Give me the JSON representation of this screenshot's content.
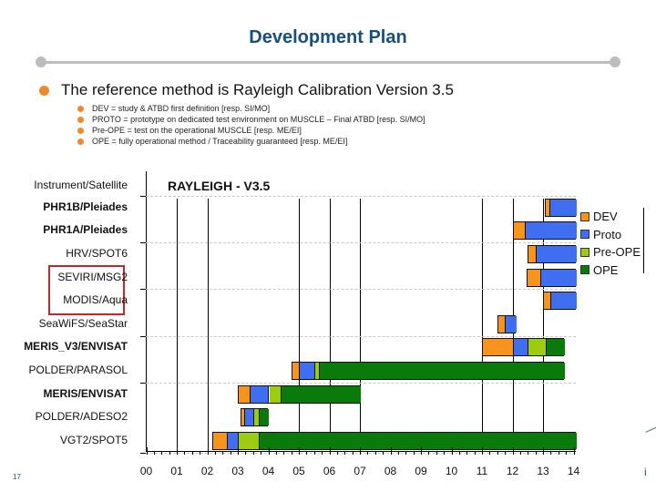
{
  "header": {
    "title": "Development Plan"
  },
  "bullets": {
    "main": "The reference method is Rayleigh Calibration Version 3.5",
    "sub": [
      "DEV = study & ATBD first definition [resp. SI/MO]",
      "PROTO = prototype on dedicated test environment on MUSCLE – Final ATBD [resp. SI/MO]",
      "Pre-OPE = test on the operational MUSCLE [resp. ME/EI]",
      "OPE = fully operational method / Traceability guaranteed [resp. ME/EI]"
    ]
  },
  "colors": {
    "DEV": "#f7941d",
    "Proto": "#3f6ef0",
    "Pre-OPE": "#9ccc10",
    "OPE": "#0a7a0a",
    "title": "#17507c",
    "bullet": "#ee8a2b",
    "highlight": "#c0282e"
  },
  "footer": {
    "page_number": "17",
    "right_glyph": "i"
  },
  "chart_data": {
    "type": "gantt",
    "title": "RAYLEIGH - V3.5",
    "ylabel": "Instrument/Satellite",
    "xlabel": "",
    "x_ticks": [
      "00",
      "01",
      "02",
      "03",
      "04",
      "05",
      "06",
      "07",
      "08",
      "09",
      "10",
      "11",
      "12",
      "13",
      "14"
    ],
    "xlim": [
      2000,
      2014.1
    ],
    "grid_vertical_years": [
      "00",
      "01",
      "02",
      "05",
      "06",
      "07",
      "11",
      "12",
      "13"
    ],
    "legend": [
      "DEV",
      "Proto",
      "Pre-OPE",
      "OPE"
    ],
    "legend_position": "right",
    "highlighted_rows": [
      "SEVIRI/MSG2",
      "MODIS/Aqua"
    ],
    "rows": [
      {
        "label": "PHR1B/Pleiades",
        "bold": true,
        "segments": [
          {
            "phase": "DEV",
            "start": 13.05,
            "end": 13.2
          },
          {
            "phase": "Proto",
            "start": 13.2,
            "end": 14.1
          }
        ]
      },
      {
        "label": "PHR1A/Pleiades",
        "bold": true,
        "segments": [
          {
            "phase": "DEV",
            "start": 12.0,
            "end": 12.4
          },
          {
            "phase": "Proto",
            "start": 12.4,
            "end": 14.1
          }
        ]
      },
      {
        "label": "HRV/SPOT6",
        "bold": false,
        "segments": [
          {
            "phase": "DEV",
            "start": 12.5,
            "end": 12.75
          },
          {
            "phase": "Proto",
            "start": 12.75,
            "end": 14.1
          }
        ]
      },
      {
        "label": "SEVIRI/MSG2",
        "bold": false,
        "segments": [
          {
            "phase": "DEV",
            "start": 12.45,
            "end": 12.9
          },
          {
            "phase": "Proto",
            "start": 12.9,
            "end": 14.1
          }
        ]
      },
      {
        "label": "MODIS/Aqua",
        "bold": false,
        "segments": [
          {
            "phase": "DEV",
            "start": 13.0,
            "end": 13.25
          },
          {
            "phase": "Proto",
            "start": 13.25,
            "end": 14.1
          }
        ]
      },
      {
        "label": "SeaWiFS/SeaStar",
        "bold": false,
        "segments": [
          {
            "phase": "DEV",
            "start": 11.5,
            "end": 11.75
          },
          {
            "phase": "Proto",
            "start": 11.75,
            "end": 12.1
          }
        ]
      },
      {
        "label": "MERIS_V3/ENVISAT",
        "bold": true,
        "segments": [
          {
            "phase": "DEV",
            "start": 11.0,
            "end": 12.0
          },
          {
            "phase": "Proto",
            "start": 12.0,
            "end": 12.5
          },
          {
            "phase": "Pre-OPE",
            "start": 12.5,
            "end": 13.1
          },
          {
            "phase": "OPE",
            "start": 13.1,
            "end": 13.7
          }
        ]
      },
      {
        "label": "POLDER/PARASOL",
        "bold": false,
        "segments": [
          {
            "phase": "DEV",
            "start": 4.75,
            "end": 5.0
          },
          {
            "phase": "Proto",
            "start": 5.0,
            "end": 5.5
          },
          {
            "phase": "Pre-OPE",
            "start": 5.5,
            "end": 5.65
          },
          {
            "phase": "OPE",
            "start": 5.65,
            "end": 13.7
          }
        ]
      },
      {
        "label": "MERIS/ENVISAT",
        "bold": true,
        "segments": [
          {
            "phase": "DEV",
            "start": 3.0,
            "end": 3.4
          },
          {
            "phase": "Proto",
            "start": 3.4,
            "end": 4.0
          },
          {
            "phase": "Pre-OPE",
            "start": 4.0,
            "end": 4.4
          },
          {
            "phase": "OPE",
            "start": 4.4,
            "end": 7.0
          }
        ]
      },
      {
        "label": "POLDER/ADESO2",
        "bold": false,
        "segments": [
          {
            "phase": "DEV",
            "start": 3.1,
            "end": 3.2
          },
          {
            "phase": "Proto",
            "start": 3.2,
            "end": 3.5
          },
          {
            "phase": "Pre-OPE",
            "start": 3.5,
            "end": 3.7
          },
          {
            "phase": "OPE",
            "start": 3.7,
            "end": 4.0
          }
        ]
      },
      {
        "label": "VGT2/SPOT5",
        "bold": false,
        "segments": [
          {
            "phase": "DEV",
            "start": 2.15,
            "end": 2.65
          },
          {
            "phase": "Proto",
            "start": 2.65,
            "end": 3.0
          },
          {
            "phase": "Pre-OPE",
            "start": 3.0,
            "end": 3.7
          },
          {
            "phase": "OPE",
            "start": 3.7,
            "end": 14.1
          }
        ]
      }
    ]
  }
}
